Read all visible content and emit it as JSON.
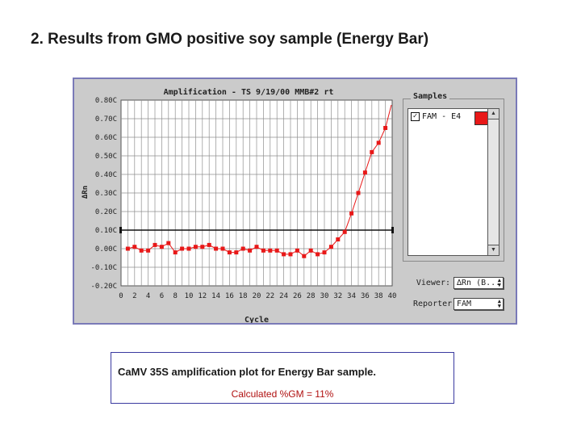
{
  "slide": {
    "title": "2. Results from GMO positive soy sample (Energy Bar)"
  },
  "chart_data": {
    "type": "line",
    "title": "Amplification - TS 9/19/00 MMB#2 rt",
    "xlabel": "Cycle",
    "ylabel": "ΔRn",
    "xlim": [
      0,
      40
    ],
    "ylim": [
      -0.2,
      0.8
    ],
    "x_ticks": [
      "0",
      "2",
      "4",
      "6",
      "8",
      "10",
      "12",
      "14",
      "16",
      "18",
      "20",
      "22",
      "24",
      "26",
      "28",
      "30",
      "32",
      "34",
      "36",
      "38",
      "40"
    ],
    "y_ticks": [
      "0.80C",
      "0.70C",
      "0.60C",
      "0.50C",
      "0.40C",
      "0.30C",
      "0.20C",
      "0.10C",
      "0.00C",
      "-0.10C",
      "-0.20C"
    ],
    "threshold": 0.1,
    "grid": true,
    "series": [
      {
        "name": "FAM - E4",
        "color": "#e81818",
        "x": [
          1,
          2,
          3,
          4,
          5,
          6,
          7,
          8,
          9,
          10,
          11,
          12,
          13,
          14,
          15,
          16,
          17,
          18,
          19,
          20,
          21,
          22,
          23,
          24,
          25,
          26,
          27,
          28,
          29,
          30,
          31,
          32,
          33,
          34,
          35,
          36,
          37,
          38,
          39
        ],
        "values": [
          0.0,
          0.01,
          -0.01,
          -0.01,
          0.02,
          0.01,
          0.03,
          -0.02,
          0.0,
          0.0,
          0.01,
          0.01,
          0.02,
          0.0,
          0.0,
          -0.02,
          -0.02,
          0.0,
          -0.01,
          0.01,
          -0.01,
          -0.01,
          -0.01,
          -0.03,
          -0.03,
          -0.01,
          -0.04,
          -0.01,
          -0.03,
          -0.02,
          0.01,
          0.05,
          0.09,
          0.19,
          0.3,
          0.41,
          0.52,
          0.57,
          0.65
        ]
      }
    ]
  },
  "samples_panel": {
    "title": "Samples",
    "items": [
      {
        "label": "FAM - E4",
        "checked": true,
        "check_glyph": "✓",
        "color": "#e81818"
      }
    ]
  },
  "controls": {
    "viewer_label": "Viewer:",
    "viewer_value": "∆Rn (B...",
    "reporter_label": "Reporter:",
    "reporter_value": "FAM"
  },
  "caption": {
    "line1": "CaMV 35S amplification plot for Energy Bar sample.",
    "line2": "Calculated %GM = 11%"
  }
}
